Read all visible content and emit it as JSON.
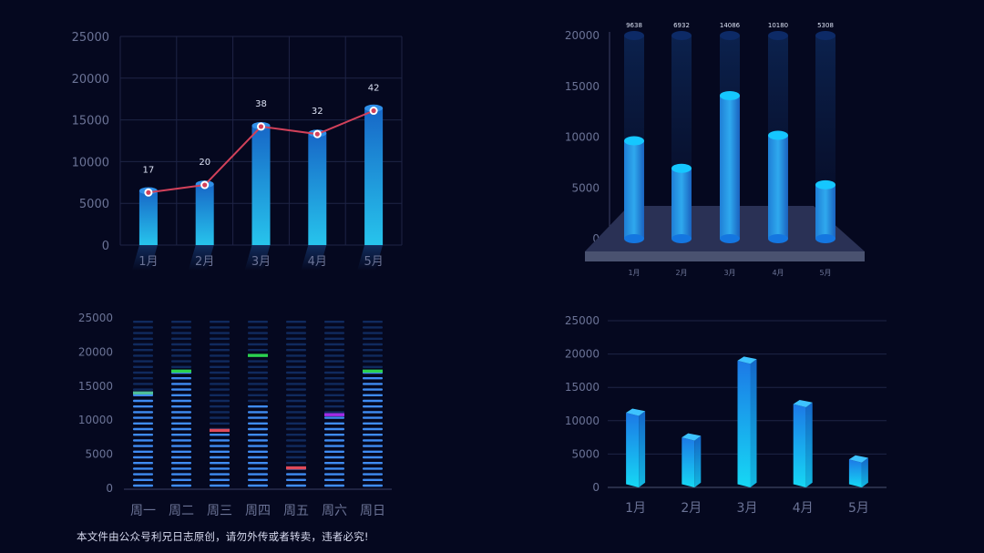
{
  "footer_note": "本文件由公众号利兄日志原创，请勿外传或者转卖，违者必究!",
  "colors": {
    "background": "#05081f",
    "bar_top": "#1767c7",
    "bar_bottom": "#27c4ec",
    "cap": "#15c7ff",
    "line": "#d2415a",
    "grid": "#1e2446",
    "stack_dim": "#102a5e",
    "stack_lit": "#3f8bf2",
    "marker_green": "#2bd24f",
    "marker_red": "#e04a5a",
    "marker_purple": "#a22be6",
    "marker_teal": "#4fbf9a"
  },
  "chart_data": [
    {
      "id": "combo",
      "type": "bar",
      "categories": [
        "1月",
        "2月",
        "3月",
        "4月",
        "5月"
      ],
      "ylim": [
        0,
        25000
      ],
      "yticks": [
        "0",
        "5000",
        "10000",
        "15000",
        "20000",
        "25000"
      ],
      "series": [
        {
          "type": "bar",
          "values": [
            6500,
            7300,
            14300,
            13400,
            16400
          ]
        },
        {
          "type": "line",
          "values": [
            6300,
            7200,
            14200,
            13300,
            16100
          ],
          "labels": [
            "17",
            "20",
            "38",
            "32",
            "42"
          ]
        }
      ],
      "grid": true
    },
    {
      "id": "cylinder3d",
      "type": "bar",
      "categories": [
        "1月",
        "2月",
        "3月",
        "4月",
        "5月"
      ],
      "values": [
        9638,
        6932,
        14086,
        10180,
        5308
      ],
      "value_labels": [
        "9638",
        "6932",
        "14086",
        "10180",
        "5308"
      ],
      "ylim": [
        0,
        20000
      ],
      "yticks": [
        "0",
        "5000",
        "10000",
        "15000",
        "20000"
      ],
      "grid": false
    },
    {
      "id": "stacked_segments",
      "type": "bar",
      "categories": [
        "周一",
        "周二",
        "周三",
        "周四",
        "周五",
        "周六",
        "周日"
      ],
      "values": [
        14000,
        17200,
        8500,
        12500,
        3000,
        10800,
        17200
      ],
      "markers": [
        14000,
        17200,
        8500,
        19500,
        3000,
        10800,
        17200
      ],
      "marker_colors": [
        "teal",
        "green",
        "red",
        "green",
        "red",
        "purple",
        "green"
      ],
      "ylim": [
        0,
        25000
      ],
      "yticks": [
        "0",
        "5000",
        "10000",
        "15000",
        "20000",
        "25000"
      ],
      "grid": false
    },
    {
      "id": "box3d",
      "type": "bar",
      "categories": [
        "1月",
        "2月",
        "3月",
        "4月",
        "5月"
      ],
      "values": [
        11200,
        7500,
        19000,
        12500,
        4200
      ],
      "ylim": [
        0,
        25000
      ],
      "yticks": [
        "0",
        "5000",
        "10000",
        "15000",
        "20000",
        "25000"
      ],
      "grid": true
    }
  ]
}
